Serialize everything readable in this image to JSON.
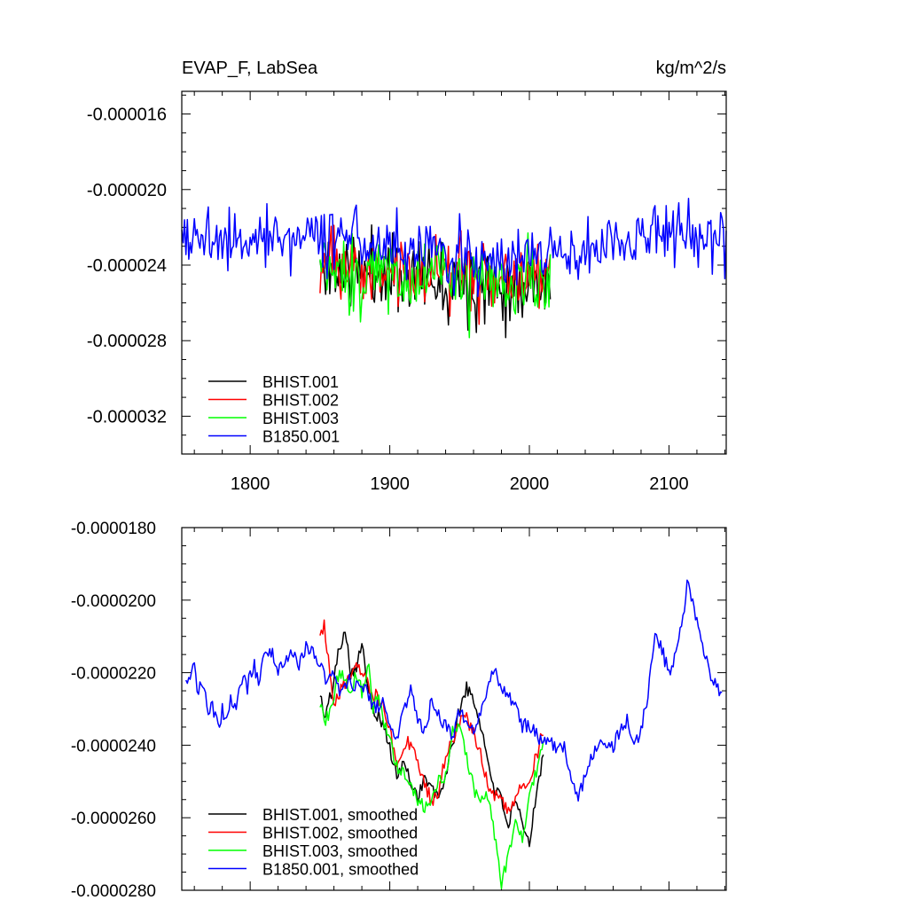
{
  "chart_data": [
    {
      "type": "line",
      "title_left": "EVAP_F, LabSea",
      "title_right": "kg/m^2/s",
      "xlabel": "",
      "ylabel": "",
      "xlim": [
        1751,
        2141
      ],
      "ylim": [
        -3.4e-05,
        -1.48e-05
      ],
      "xticks": [
        1800,
        1900,
        2000,
        2100
      ],
      "xtick_labels": [
        "1800",
        "1900",
        "2000",
        "2100"
      ],
      "yticks": [
        -1.6e-05,
        -2e-05,
        -2.4e-05,
        -2.8e-05,
        -3.2e-05
      ],
      "ytick_labels": [
        "-0.000016",
        "-0.000020",
        "-0.000024",
        "-0.000028",
        "-0.000032"
      ],
      "legend": [
        "BHIST.001",
        "BHIST.002",
        "BHIST.003",
        "B1850.001"
      ],
      "legend_position": "bottom-left",
      "series_style": "annual",
      "series": [
        {
          "name": "BHIST.001",
          "color": "#000000",
          "start": 1850,
          "end": 2015,
          "mean": -2.42e-05,
          "amp": 2.5e-06,
          "seed": 11,
          "profile": [
            [
              1850,
              0
            ],
            [
              1900,
              -2e-07
            ],
            [
              1960,
              -6e-07
            ],
            [
              2000,
              -8e-07
            ],
            [
              2015,
              -4e-07
            ]
          ]
        },
        {
          "name": "BHIST.002",
          "color": "#ff0000",
          "start": 1850,
          "end": 2015,
          "mean": -2.4e-05,
          "amp": 2.4e-06,
          "seed": 23,
          "profile": [
            [
              1850,
              0
            ],
            [
              1900,
              -2e-07
            ],
            [
              1960,
              -5e-07
            ],
            [
              2000,
              -6e-07
            ],
            [
              2015,
              -2e-07
            ]
          ]
        },
        {
          "name": "BHIST.003",
          "color": "#00ff00",
          "start": 1850,
          "end": 2015,
          "mean": -2.42e-05,
          "amp": 2.6e-06,
          "seed": 37,
          "profile": [
            [
              1850,
              0
            ],
            [
              1900,
              -3e-07
            ],
            [
              1960,
              -7e-07
            ],
            [
              1985,
              -1.1e-06
            ],
            [
              2015,
              -3e-07
            ]
          ]
        },
        {
          "name": "B1850.001",
          "color": "#0000ff",
          "start": 1751,
          "end": 2141,
          "mean": -2.26e-05,
          "amp": 2.2e-06,
          "seed": 5,
          "profile": [
            [
              1751,
              0
            ],
            [
              1850,
              2e-07
            ],
            [
              1950,
              -8e-07
            ],
            [
              2030,
              -1e-06
            ],
            [
              2100,
              4e-07
            ],
            [
              2141,
              0
            ]
          ]
        }
      ]
    },
    {
      "type": "line",
      "xlim": [
        1751,
        2141
      ],
      "ylim": [
        -2.8e-05,
        -1.8e-05
      ],
      "xticks": [
        1800,
        1900,
        2000,
        2100
      ],
      "yticks": [
        -1.8e-05,
        -2e-05,
        -2.2e-05,
        -2.4e-05,
        -2.6e-05,
        -2.8e-05
      ],
      "ytick_labels": [
        "-0.0000180",
        "-0.0000200",
        "-0.0000220",
        "-0.0000240",
        "-0.0000260",
        "-0.0000280"
      ],
      "legend": [
        "BHIST.001, smoothed",
        "BHIST.002, smoothed",
        "BHIST.003, smoothed",
        "B1850.001, smoothed"
      ],
      "legend_position": "bottom-left",
      "series_style": "smoothed",
      "series": [
        {
          "name": "BHIST.001, smoothed",
          "color": "#000000",
          "anchors": [
            [
              1850,
              -2.25e-05
            ],
            [
              1853,
              -2.33e-05
            ],
            [
              1858,
              -2.26e-05
            ],
            [
              1863,
              -2.15e-05
            ],
            [
              1868,
              -2.07e-05
            ],
            [
              1872,
              -2.2e-05
            ],
            [
              1876,
              -2.18e-05
            ],
            [
              1880,
              -2.13e-05
            ],
            [
              1884,
              -2.22e-05
            ],
            [
              1888,
              -2.3e-05
            ],
            [
              1892,
              -2.32e-05
            ],
            [
              1896,
              -2.35e-05
            ],
            [
              1900,
              -2.41e-05
            ],
            [
              1905,
              -2.49e-05
            ],
            [
              1910,
              -2.45e-05
            ],
            [
              1915,
              -2.5e-05
            ],
            [
              1920,
              -2.54e-05
            ],
            [
              1925,
              -2.49e-05
            ],
            [
              1930,
              -2.52e-05
            ],
            [
              1935,
              -2.55e-05
            ],
            [
              1940,
              -2.48e-05
            ],
            [
              1945,
              -2.4e-05
            ],
            [
              1950,
              -2.3e-05
            ],
            [
              1955,
              -2.24e-05
            ],
            [
              1960,
              -2.28e-05
            ],
            [
              1965,
              -2.34e-05
            ],
            [
              1970,
              -2.44e-05
            ],
            [
              1975,
              -2.52e-05
            ],
            [
              1980,
              -2.55e-05
            ],
            [
              1985,
              -2.62e-05
            ],
            [
              1990,
              -2.56e-05
            ],
            [
              1995,
              -2.62e-05
            ],
            [
              2000,
              -2.68e-05
            ],
            [
              2005,
              -2.52e-05
            ],
            [
              2010,
              -2.43e-05
            ]
          ]
        },
        {
          "name": "BHIST.002, smoothed",
          "color": "#ff0000",
          "anchors": [
            [
              1850,
              -2.08e-05
            ],
            [
              1853,
              -2.07e-05
            ],
            [
              1855,
              -2.13e-05
            ],
            [
              1860,
              -2.28e-05
            ],
            [
              1865,
              -2.25e-05
            ],
            [
              1870,
              -2.21e-05
            ],
            [
              1876,
              -2.18e-05
            ],
            [
              1882,
              -2.22e-05
            ],
            [
              1888,
              -2.26e-05
            ],
            [
              1895,
              -2.28e-05
            ],
            [
              1900,
              -2.36e-05
            ],
            [
              1905,
              -2.44e-05
            ],
            [
              1910,
              -2.4e-05
            ],
            [
              1915,
              -2.39e-05
            ],
            [
              1920,
              -2.44e-05
            ],
            [
              1925,
              -2.5e-05
            ],
            [
              1930,
              -2.56e-05
            ],
            [
              1935,
              -2.52e-05
            ],
            [
              1940,
              -2.44e-05
            ],
            [
              1945,
              -2.38e-05
            ],
            [
              1950,
              -2.34e-05
            ],
            [
              1955,
              -2.33e-05
            ],
            [
              1960,
              -2.36e-05
            ],
            [
              1965,
              -2.42e-05
            ],
            [
              1970,
              -2.5e-05
            ],
            [
              1975,
              -2.54e-05
            ],
            [
              1980,
              -2.56e-05
            ],
            [
              1985,
              -2.58e-05
            ],
            [
              1990,
              -2.54e-05
            ],
            [
              1995,
              -2.52e-05
            ],
            [
              2000,
              -2.49e-05
            ],
            [
              2005,
              -2.43e-05
            ],
            [
              2010,
              -2.36e-05
            ]
          ]
        },
        {
          "name": "BHIST.003, smoothed",
          "color": "#00ff00",
          "anchors": [
            [
              1850,
              -2.28e-05
            ],
            [
              1853,
              -2.33e-05
            ],
            [
              1858,
              -2.31e-05
            ],
            [
              1862,
              -2.22e-05
            ],
            [
              1866,
              -2.19e-05
            ],
            [
              1872,
              -2.26e-05
            ],
            [
              1876,
              -2.2e-05
            ],
            [
              1880,
              -2.25e-05
            ],
            [
              1885,
              -2.18e-05
            ],
            [
              1888,
              -2.3e-05
            ],
            [
              1892,
              -2.26e-05
            ],
            [
              1896,
              -2.35e-05
            ],
            [
              1900,
              -2.38e-05
            ],
            [
              1905,
              -2.46e-05
            ],
            [
              1910,
              -2.48e-05
            ],
            [
              1915,
              -2.5e-05
            ],
            [
              1920,
              -2.55e-05
            ],
            [
              1925,
              -2.57e-05
            ],
            [
              1930,
              -2.54e-05
            ],
            [
              1935,
              -2.5e-05
            ],
            [
              1940,
              -2.48e-05
            ],
            [
              1945,
              -2.36e-05
            ],
            [
              1950,
              -2.35e-05
            ],
            [
              1955,
              -2.43e-05
            ],
            [
              1960,
              -2.52e-05
            ],
            [
              1965,
              -2.56e-05
            ],
            [
              1970,
              -2.54e-05
            ],
            [
              1975,
              -2.65e-05
            ],
            [
              1980,
              -2.78e-05
            ],
            [
              1985,
              -2.7e-05
            ],
            [
              1990,
              -2.62e-05
            ],
            [
              1995,
              -2.66e-05
            ],
            [
              2000,
              -2.55e-05
            ],
            [
              2005,
              -2.47e-05
            ],
            [
              2010,
              -2.38e-05
            ]
          ]
        },
        {
          "name": "B1850.001, smoothed",
          "color": "#0000ff",
          "anchors": [
            [
              1754,
              -2.22e-05
            ],
            [
              1758,
              -2.2e-05
            ],
            [
              1760,
              -2.17e-05
            ],
            [
              1762,
              -2.27e-05
            ],
            [
              1765,
              -2.22e-05
            ],
            [
              1768,
              -2.26e-05
            ],
            [
              1770,
              -2.33e-05
            ],
            [
              1772,
              -2.28e-05
            ],
            [
              1775,
              -2.32e-05
            ],
            [
              1778,
              -2.36e-05
            ],
            [
              1780,
              -2.3e-05
            ],
            [
              1783,
              -2.33e-05
            ],
            [
              1786,
              -2.27e-05
            ],
            [
              1789,
              -2.3e-05
            ],
            [
              1792,
              -2.26e-05
            ],
            [
              1795,
              -2.2e-05
            ],
            [
              1798,
              -2.25e-05
            ],
            [
              1800,
              -2.2e-05
            ],
            [
              1803,
              -2.18e-05
            ],
            [
              1806,
              -2.24e-05
            ],
            [
              1810,
              -2.16e-05
            ],
            [
              1815,
              -2.14e-05
            ],
            [
              1820,
              -2.2e-05
            ],
            [
              1825,
              -2.16e-05
            ],
            [
              1830,
              -2.14e-05
            ],
            [
              1835,
              -2.18e-05
            ],
            [
              1840,
              -2.13e-05
            ],
            [
              1845,
              -2.15e-05
            ],
            [
              1850,
              -2.18e-05
            ],
            [
              1855,
              -2.22e-05
            ],
            [
              1860,
              -2.2e-05
            ],
            [
              1865,
              -2.26e-05
            ],
            [
              1870,
              -2.22e-05
            ],
            [
              1875,
              -2.24e-05
            ],
            [
              1880,
              -2.23e-05
            ],
            [
              1885,
              -2.26e-05
            ],
            [
              1890,
              -2.3e-05
            ],
            [
              1895,
              -2.28e-05
            ],
            [
              1900,
              -2.36e-05
            ],
            [
              1905,
              -2.38e-05
            ],
            [
              1910,
              -2.3e-05
            ],
            [
              1915,
              -2.24e-05
            ],
            [
              1920,
              -2.34e-05
            ],
            [
              1925,
              -2.36e-05
            ],
            [
              1930,
              -2.28e-05
            ],
            [
              1935,
              -2.32e-05
            ],
            [
              1940,
              -2.35e-05
            ],
            [
              1945,
              -2.38e-05
            ],
            [
              1950,
              -2.3e-05
            ],
            [
              1955,
              -2.34e-05
            ],
            [
              1960,
              -2.36e-05
            ],
            [
              1965,
              -2.32e-05
            ],
            [
              1970,
              -2.25e-05
            ],
            [
              1975,
              -2.19e-05
            ],
            [
              1980,
              -2.24e-05
            ],
            [
              1985,
              -2.26e-05
            ],
            [
              1990,
              -2.3e-05
            ],
            [
              1995,
              -2.35e-05
            ],
            [
              2000,
              -2.34e-05
            ],
            [
              2005,
              -2.37e-05
            ],
            [
              2010,
              -2.4e-05
            ],
            [
              2015,
              -2.38e-05
            ],
            [
              2020,
              -2.42e-05
            ],
            [
              2025,
              -2.4e-05
            ],
            [
              2030,
              -2.5e-05
            ],
            [
              2035,
              -2.55e-05
            ],
            [
              2040,
              -2.48e-05
            ],
            [
              2045,
              -2.43e-05
            ],
            [
              2050,
              -2.38e-05
            ],
            [
              2055,
              -2.42e-05
            ],
            [
              2060,
              -2.4e-05
            ],
            [
              2065,
              -2.36e-05
            ],
            [
              2070,
              -2.33e-05
            ],
            [
              2075,
              -2.4e-05
            ],
            [
              2080,
              -2.36e-05
            ],
            [
              2085,
              -2.26e-05
            ],
            [
              2090,
              -2.1e-05
            ],
            [
              2095,
              -2.14e-05
            ],
            [
              2100,
              -2.2e-05
            ],
            [
              2105,
              -2.14e-05
            ],
            [
              2110,
              -2.05e-05
            ],
            [
              2113,
              -1.95e-05
            ],
            [
              2117,
              -2e-05
            ],
            [
              2120,
              -2.06e-05
            ],
            [
              2125,
              -2.14e-05
            ],
            [
              2130,
              -2.22e-05
            ],
            [
              2135,
              -2.24e-05
            ],
            [
              2138,
              -2.27e-05
            ]
          ]
        }
      ]
    }
  ]
}
